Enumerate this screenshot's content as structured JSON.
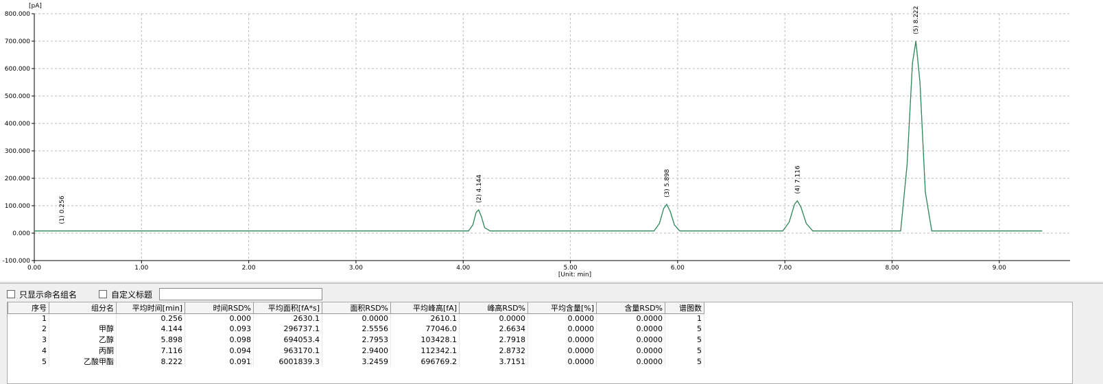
{
  "chart_data": {
    "type": "line",
    "y_label": "[pA]",
    "x_label": "[Unit: min]",
    "color": "#2e8b57",
    "baseline_color": "#5a5aff",
    "xlim": [
      0,
      9.66
    ],
    "ylim": [
      -100,
      800
    ],
    "grid": true,
    "xticks": [
      {
        "value": 0,
        "label": "0.00"
      },
      {
        "value": 1,
        "label": "1.00"
      },
      {
        "value": 2,
        "label": "2.00"
      },
      {
        "value": 3,
        "label": "3.00"
      },
      {
        "value": 4,
        "label": "4.00"
      },
      {
        "value": 5,
        "label": "5.00"
      },
      {
        "value": 6,
        "label": "6.00"
      },
      {
        "value": 7,
        "label": "7.00"
      },
      {
        "value": 8,
        "label": "8.00"
      },
      {
        "value": 9,
        "label": "9.00"
      }
    ],
    "yticks": [
      {
        "value": -100,
        "label": "-100.000"
      },
      {
        "value": 0,
        "label": "0.000"
      },
      {
        "value": 100,
        "label": "100.000"
      },
      {
        "value": 200,
        "label": "200.000"
      },
      {
        "value": 300,
        "label": "300.000"
      },
      {
        "value": 400,
        "label": "400.000"
      },
      {
        "value": 500,
        "label": "500.000"
      },
      {
        "value": 600,
        "label": "600.000"
      },
      {
        "value": 700,
        "label": "700.000"
      },
      {
        "value": 800,
        "label": "800.000"
      }
    ],
    "x": [
      0,
      4.05,
      4.09,
      4.12,
      4.144,
      4.17,
      4.2,
      4.25,
      5.78,
      5.83,
      5.87,
      5.898,
      5.93,
      5.97,
      6.02,
      6.98,
      7.04,
      7.09,
      7.116,
      7.15,
      7.2,
      7.26,
      8.08,
      8.14,
      8.19,
      8.222,
      8.26,
      8.31,
      8.37,
      9.4
    ],
    "values": [
      8,
      8,
      30,
      75,
      85,
      60,
      20,
      8,
      8,
      35,
      90,
      105,
      80,
      30,
      8,
      8,
      40,
      105,
      118,
      95,
      35,
      8,
      8,
      250,
      620,
      700,
      550,
      150,
      8,
      8
    ],
    "annotations": [
      {
        "text": "(1) 0.256",
        "x": 0.256,
        "y": 8
      },
      {
        "text": "(2) 4.144",
        "x": 4.144,
        "y": 85
      },
      {
        "text": "(3) 5.898",
        "x": 5.898,
        "y": 105
      },
      {
        "text": "(4) 7.116",
        "x": 7.116,
        "y": 118
      },
      {
        "text": "(5) 8.222",
        "x": 8.222,
        "y": 700
      }
    ]
  },
  "options": {
    "named_only": "只显示命名组名",
    "custom_title": "自定义标题"
  },
  "table": {
    "header": [
      "序号",
      "组分名",
      "平均时间[min]",
      "时间RSD%",
      "平均面积[fA*s]",
      "面积RSD%",
      "平均峰高[fA]",
      "峰高RSD%",
      "平均含量[%]",
      "含量RSD%",
      "谱图数"
    ],
    "rows": [
      [
        "1",
        "",
        "0.256",
        "0.000",
        "2630.1",
        "0.0000",
        "2610.1",
        "0.0000",
        "0.0000",
        "0.0000",
        "1"
      ],
      [
        "2",
        "甲醇",
        "4.144",
        "0.093",
        "296737.1",
        "2.5556",
        "77046.0",
        "2.6634",
        "0.0000",
        "0.0000",
        "5"
      ],
      [
        "3",
        "乙醇",
        "5.898",
        "0.098",
        "694053.4",
        "2.7953",
        "103428.1",
        "2.7918",
        "0.0000",
        "0.0000",
        "5"
      ],
      [
        "4",
        "丙酮",
        "7.116",
        "0.094",
        "963170.1",
        "2.9400",
        "112342.1",
        "2.8732",
        "0.0000",
        "0.0000",
        "5"
      ],
      [
        "5",
        "乙酸甲酯",
        "8.222",
        "0.091",
        "6001839.3",
        "3.2459",
        "696769.2",
        "3.7151",
        "0.0000",
        "0.0000",
        "5"
      ]
    ]
  }
}
